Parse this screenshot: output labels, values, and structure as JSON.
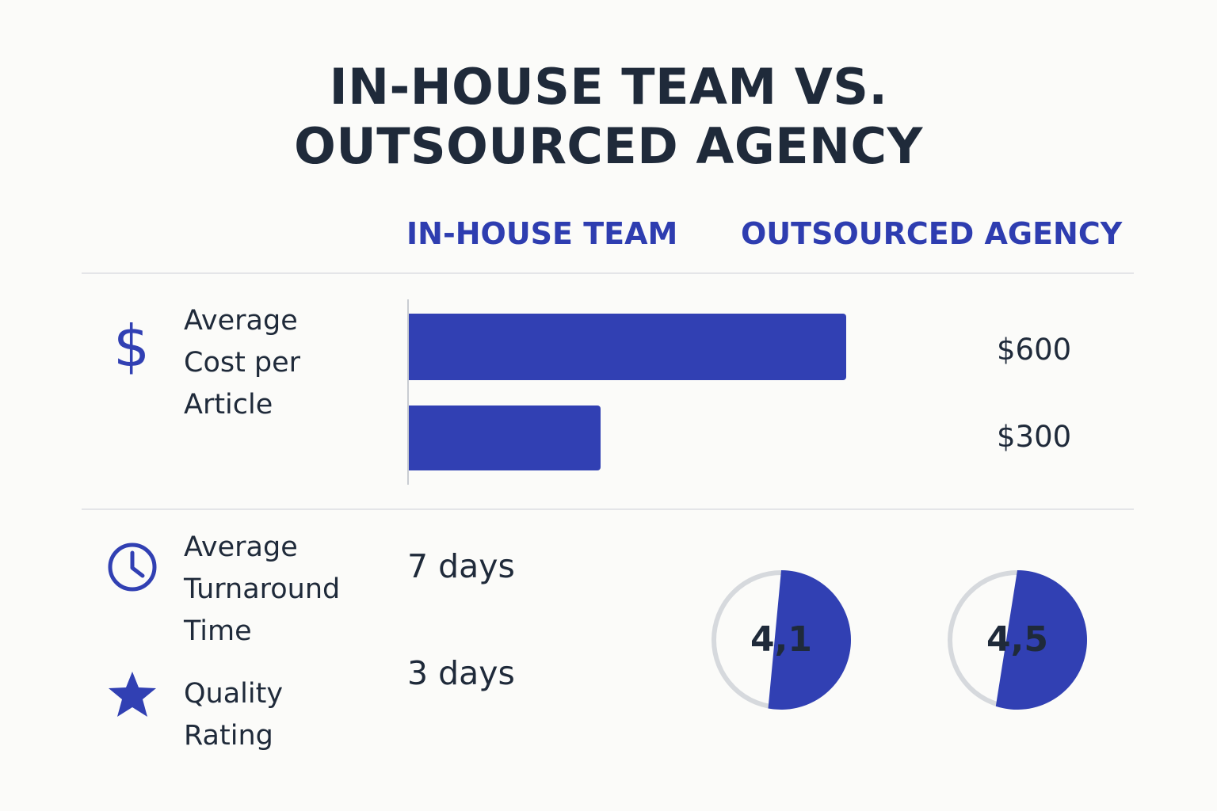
{
  "title": {
    "line1": "IN-HOUSE TEAM VS.",
    "line2": "OUTSOURCED AGENCY"
  },
  "columns": {
    "inhouse": "IN-HOUSE TEAM",
    "agency": "OUTSOURCED AGENCY"
  },
  "rows": {
    "cost": {
      "label": "Average\nCost per\nArticle",
      "icon": "dollar-icon"
    },
    "turnaround": {
      "label": "Average\nTurnaround\nTime",
      "icon": "clock-icon"
    },
    "quality": {
      "label": "Quality\nRating",
      "icon": "star-icon"
    }
  },
  "colors": {
    "accent": "#3140b3",
    "text": "#1f2a3a",
    "track": "#d6d9dd"
  },
  "chart_data": [
    {
      "type": "bar",
      "orientation": "horizontal",
      "categories": [
        "IN-HOUSE TEAM",
        "OUTSOURCED AGENCY"
      ],
      "values": [
        600,
        300
      ],
      "value_labels": [
        "$600",
        "$300"
      ],
      "xlim": [
        0,
        650
      ]
    },
    {
      "type": "table",
      "rows": [
        {
          "column": "IN-HOUSE TEAM",
          "value": "7 days"
        },
        {
          "column": "OUTSOURCED AGENCY",
          "value": "3 days"
        }
      ]
    },
    {
      "type": "pie",
      "gauges": [
        {
          "column": "IN-HOUSE TEAM",
          "value": 4.1,
          "label": "4,1",
          "fraction": 0.53
        },
        {
          "column": "OUTSOURCED AGENCY",
          "value": 4.5,
          "label": "4,5",
          "fraction": 0.55
        }
      ]
    }
  ]
}
